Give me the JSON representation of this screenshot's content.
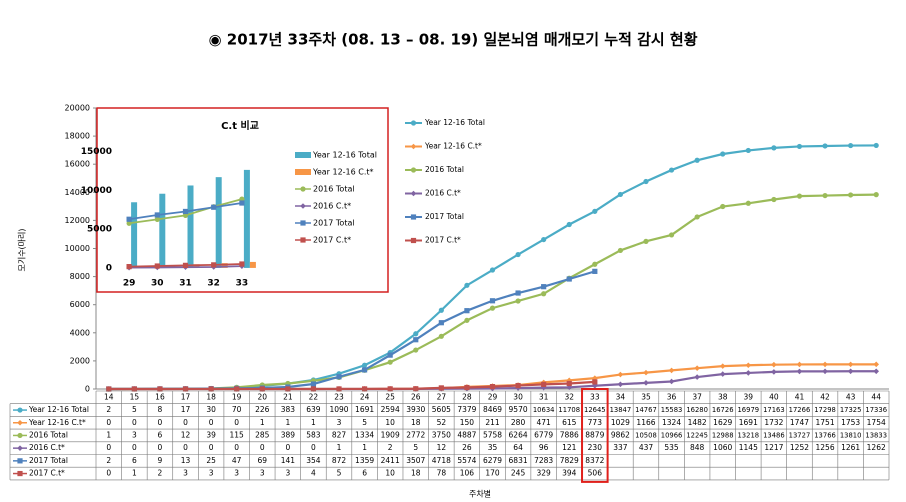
{
  "chart_data": [
    {
      "type": "line",
      "title": "◉ 2017년 33주차 (08. 13 – 08. 19) 일본뇌염 매개모기 누적 감시 현황",
      "y_label": "모기수(마리)",
      "x_label": "주차별",
      "categories": [
        "14",
        "15",
        "16",
        "17",
        "18",
        "19",
        "20",
        "21",
        "22",
        "23",
        "24",
        "25",
        "26",
        "27",
        "28",
        "29",
        "30",
        "31",
        "32",
        "33",
        "34",
        "35",
        "36",
        "37",
        "38",
        "39",
        "40",
        "41",
        "42",
        "43",
        "44"
      ],
      "highlight": "33",
      "ylim": [
        0,
        20000
      ],
      "yticks": [
        0,
        2000,
        4000,
        6000,
        8000,
        10000,
        12000,
        14000,
        16000,
        18000,
        20000
      ],
      "series": [
        {
          "name": "Year 12-16 Total",
          "color": "#4bacc6",
          "values": [
            2,
            5,
            8,
            17,
            30,
            70,
            226,
            383,
            639,
            1090,
            1691,
            2594,
            3930,
            5605,
            7379,
            8469,
            9570,
            10634,
            11708,
            12645,
            13847,
            14767,
            15583,
            16280,
            16726,
            16979,
            17163,
            17266,
            17298,
            17325,
            17336
          ]
        },
        {
          "name": "Year 12-16 C.t*",
          "color": "#f79646",
          "values": [
            0,
            0,
            0,
            0,
            0,
            0,
            1,
            1,
            1,
            3,
            5,
            10,
            18,
            52,
            150,
            211,
            280,
            471,
            615,
            773,
            1029,
            1166,
            1324,
            1482,
            1629,
            1691,
            1732,
            1747,
            1751,
            1753,
            1754
          ]
        },
        {
          "name": "2016 Total",
          "color": "#9bbb59",
          "values": [
            1,
            3,
            6,
            12,
            39,
            115,
            285,
            389,
            583,
            827,
            1334,
            1909,
            2772,
            3750,
            4887,
            5758,
            6264,
            6779,
            7886,
            8879,
            9862,
            10508,
            10966,
            12245,
            12988,
            13218,
            13486,
            13727,
            13766,
            13810,
            13833
          ]
        },
        {
          "name": "2016 C.t*",
          "color": "#8064a2",
          "values": [
            0,
            0,
            0,
            0,
            0,
            0,
            0,
            0,
            0,
            1,
            1,
            2,
            5,
            12,
            26,
            35,
            64,
            96,
            121,
            230,
            337,
            437,
            535,
            848,
            1060,
            1145,
            1217,
            1252,
            1256,
            1261,
            1262
          ]
        },
        {
          "name": "2017 Total",
          "color": "#4f81bd",
          "values": [
            2,
            6,
            9,
            13,
            25,
            47,
            69,
            141,
            354,
            872,
            1359,
            2411,
            3507,
            4718,
            5574,
            6279,
            6831,
            7283,
            7829,
            8372,
            null,
            null,
            null,
            null,
            null,
            null,
            null,
            null,
            null,
            null,
            null
          ]
        },
        {
          "name": "2017 C.t*",
          "color": "#c0504d",
          "values": [
            0,
            1,
            2,
            3,
            3,
            3,
            3,
            3,
            4,
            5,
            6,
            10,
            18,
            78,
            106,
            170,
            245,
            329,
            394,
            506,
            null,
            null,
            null,
            null,
            null,
            null,
            null,
            null,
            null,
            null,
            null
          ]
        }
      ]
    },
    {
      "type": "bar-line",
      "title": "C.t 비교",
      "categories": [
        "29",
        "30",
        "31",
        "32",
        "33"
      ],
      "ylim": [
        -1300,
        16500
      ],
      "yticks": [
        0,
        5000,
        10000,
        15000
      ],
      "series": [
        {
          "name": "Year 12-16 Total",
          "color": "#4bacc6",
          "kind": "bar",
          "values": [
            8469,
            9570,
            10634,
            11708,
            12645
          ]
        },
        {
          "name": "Year 12-16 C.t*",
          "color": "#f79646",
          "kind": "bar",
          "values": [
            211,
            280,
            471,
            615,
            773
          ]
        },
        {
          "name": "2016 Total",
          "color": "#9bbb59",
          "kind": "line",
          "values": [
            5758,
            6264,
            6779,
            7886,
            8879
          ]
        },
        {
          "name": "2016 C.t*",
          "color": "#8064a2",
          "kind": "line",
          "values": [
            35,
            64,
            96,
            121,
            230
          ]
        },
        {
          "name": "2017 Total",
          "color": "#4f81bd",
          "kind": "line",
          "values": [
            6279,
            6831,
            7283,
            7829,
            8372
          ]
        },
        {
          "name": "2017 C.t*",
          "color": "#c0504d",
          "kind": "line",
          "values": [
            170,
            245,
            329,
            394,
            506
          ]
        }
      ]
    }
  ]
}
